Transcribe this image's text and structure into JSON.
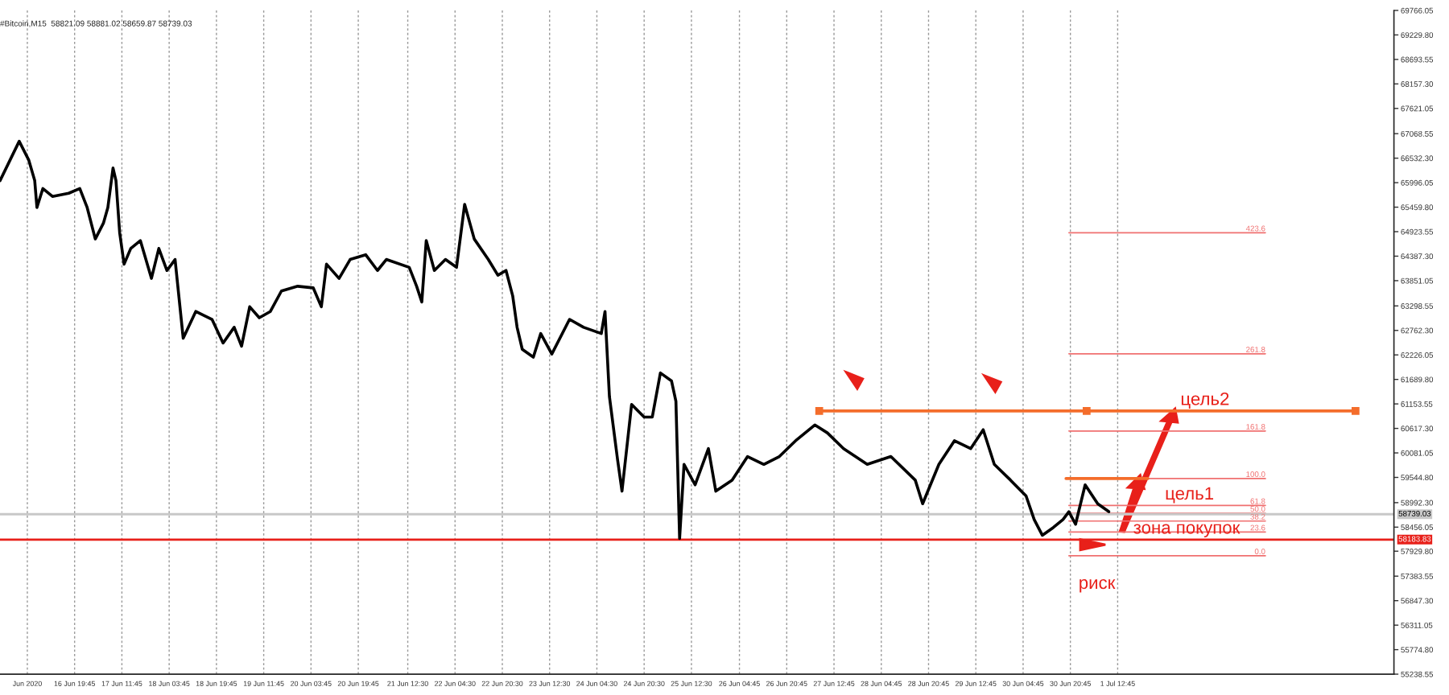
{
  "chart_data": {
    "type": "line",
    "title": "#Bitcoin,M15  58821.09 58881.02 58659.87 58739.03",
    "xlim": [
      "2020-06-15T18:30",
      "2020-07-05T10:15"
    ],
    "ylim": [
      55238.55,
      69766.05
    ],
    "xticks": [
      {
        "value": "2020-06-16T03:45",
        "label": "Jun 2020"
      },
      {
        "value": "2020-06-16T19:45",
        "label": "16 Jun 19:45"
      },
      {
        "value": "2020-06-17T11:45",
        "label": "17 Jun 11:45"
      },
      {
        "value": "2020-06-18T03:45",
        "label": "18 Jun 03:45"
      },
      {
        "value": "2020-06-18T19:45",
        "label": "18 Jun 19:45"
      },
      {
        "value": "2020-06-19T11:45",
        "label": "19 Jun 11:45"
      },
      {
        "value": "2020-06-20T03:45",
        "label": "20 Jun 03:45"
      },
      {
        "value": "2020-06-20T19:45",
        "label": "20 Jun 19:45"
      },
      {
        "value": "2020-06-21T12:30",
        "label": "21 Jun 12:30"
      },
      {
        "value": "2020-06-22T04:30",
        "label": "22 Jun 04:30"
      },
      {
        "value": "2020-06-22T20:30",
        "label": "22 Jun 20:30"
      },
      {
        "value": "2020-06-23T12:30",
        "label": "23 Jun 12:30"
      },
      {
        "value": "2020-06-24T04:30",
        "label": "24 Jun 04:30"
      },
      {
        "value": "2020-06-24T20:30",
        "label": "24 Jun 20:30"
      },
      {
        "value": "2020-06-25T12:30",
        "label": "25 Jun 12:30"
      },
      {
        "value": "2020-06-26T04:45",
        "label": "26 Jun 04:45"
      },
      {
        "value": "2020-06-26T20:45",
        "label": "26 Jun 20:45"
      },
      {
        "value": "2020-06-27T12:45",
        "label": "27 Jun 12:45"
      },
      {
        "value": "2020-06-28T04:45",
        "label": "28 Jun 04:45"
      },
      {
        "value": "2020-06-28T20:45",
        "label": "28 Jun 20:45"
      },
      {
        "value": "2020-06-29T12:45",
        "label": "29 Jun 12:45"
      },
      {
        "value": "2020-06-30T04:45",
        "label": "30 Jun 04:45"
      },
      {
        "value": "2020-06-30T20:45",
        "label": "30 Jun 20:45"
      },
      {
        "value": "2020-07-01T12:45",
        "label": "1 Jul 12:45"
      }
    ],
    "yticks": [
      {
        "value": 69766.05,
        "label": "69766.05"
      },
      {
        "value": 69229.8,
        "label": "69229.80"
      },
      {
        "value": 68693.55,
        "label": "68693.55"
      },
      {
        "value": 68157.3,
        "label": "68157.30"
      },
      {
        "value": 67621.05,
        "label": "67621.05"
      },
      {
        "value": 67068.55,
        "label": "67068.55"
      },
      {
        "value": 66532.3,
        "label": "66532.30"
      },
      {
        "value": 65996.05,
        "label": "65996.05"
      },
      {
        "value": 65459.8,
        "label": "65459.80"
      },
      {
        "value": 64923.55,
        "label": "64923.55"
      },
      {
        "value": 64387.3,
        "label": "64387.30"
      },
      {
        "value": 63851.05,
        "label": "63851.05"
      },
      {
        "value": 63298.55,
        "label": "63298.55"
      },
      {
        "value": 62762.3,
        "label": "62762.30"
      },
      {
        "value": 62226.05,
        "label": "62226.05"
      },
      {
        "value": 61689.8,
        "label": "61689.80"
      },
      {
        "value": 61153.55,
        "label": "61153.55"
      },
      {
        "value": 60617.3,
        "label": "60617.30"
      },
      {
        "value": 60081.05,
        "label": "60081.05"
      },
      {
        "value": 59544.8,
        "label": "59544.80"
      },
      {
        "value": 58992.3,
        "label": "58992.30"
      },
      {
        "value": 58456.05,
        "label": "58456.05"
      },
      {
        "value": 57929.8,
        "label": "57929.80"
      },
      {
        "value": 57383.55,
        "label": "57383.55"
      },
      {
        "value": 56847.3,
        "label": "56847.30"
      },
      {
        "value": 56311.05,
        "label": "56311.05"
      },
      {
        "value": 55774.8,
        "label": "55774.80"
      },
      {
        "value": 55238.55,
        "label": "55238.55"
      }
    ],
    "grid": "x",
    "series": [
      {
        "color": "#000000",
        "x": [
          "2020-06-15T18:30",
          "2020-06-16T01:00",
          "2020-06-16T04:15",
          "2020-06-16T06:15",
          "2020-06-16T07:00",
          "2020-06-16T09:00",
          "2020-06-16T12:15",
          "2020-06-16T17:45",
          "2020-06-16T21:30",
          "2020-06-17T00:00",
          "2020-06-17T02:45",
          "2020-06-17T05:30",
          "2020-06-17T07:00",
          "2020-06-17T08:45",
          "2020-06-17T09:45",
          "2020-06-17T11:00",
          "2020-06-17T12:30",
          "2020-06-17T14:45",
          "2020-06-17T18:00",
          "2020-06-17T21:45",
          "2020-06-18T00:15",
          "2020-06-18T03:00",
          "2020-06-18T05:45",
          "2020-06-18T08:30",
          "2020-06-18T12:45",
          "2020-06-18T18:15",
          "2020-06-18T22:00",
          "2020-06-19T01:45",
          "2020-06-19T04:15",
          "2020-06-19T07:00",
          "2020-06-19T10:15",
          "2020-06-19T14:00",
          "2020-06-19T17:45",
          "2020-06-19T23:15",
          "2020-06-20T04:30",
          "2020-06-20T07:15",
          "2020-06-20T09:00",
          "2020-06-20T13:15",
          "2020-06-20T17:00",
          "2020-06-20T22:15",
          "2020-06-21T02:15",
          "2020-06-21T05:15",
          "2020-06-21T13:00",
          "2020-06-21T15:30",
          "2020-06-21T17:15",
          "2020-06-21T18:45",
          "2020-06-21T21:30",
          "2020-06-22T01:15",
          "2020-06-22T05:00",
          "2020-06-22T07:45",
          "2020-06-22T11:00",
          "2020-06-22T15:45",
          "2020-06-22T19:00",
          "2020-06-22T21:45",
          "2020-06-23T00:00",
          "2020-06-23T01:30",
          "2020-06-23T03:15",
          "2020-06-23T07:00",
          "2020-06-23T09:30",
          "2020-06-23T13:15",
          "2020-06-23T19:15",
          "2020-06-24T00:00",
          "2020-06-24T06:00",
          "2020-06-24T07:15",
          "2020-06-24T08:45",
          "2020-06-24T11:30",
          "2020-06-24T13:00",
          "2020-06-24T16:15",
          "2020-06-24T20:30",
          "2020-06-24T23:15",
          "2020-06-25T02:00",
          "2020-06-25T05:45",
          "2020-06-25T07:15",
          "2020-06-25T08:30",
          "2020-06-25T10:00",
          "2020-06-25T13:45",
          "2020-06-25T18:15",
          "2020-06-25T20:45",
          "2020-06-26T02:15",
          "2020-06-26T07:30",
          "2020-06-26T13:00",
          "2020-06-26T18:15",
          "2020-06-26T23:45",
          "2020-06-27T06:15",
          "2020-06-27T10:30",
          "2020-06-27T16:00",
          "2020-06-28T00:00",
          "2020-06-28T08:00",
          "2020-06-28T16:15",
          "2020-06-28T18:45",
          "2020-06-29T00:15",
          "2020-06-29T05:30",
          "2020-06-29T11:00",
          "2020-06-29T15:15",
          "2020-06-29T19:00",
          "2020-06-30T00:30",
          "2020-06-30T05:45",
          "2020-06-30T08:30",
          "2020-06-30T11:15",
          "2020-06-30T15:00",
          "2020-06-30T18:15",
          "2020-06-30T20:15",
          "2020-06-30T22:30",
          "2020-07-01T01:45",
          "2020-07-01T06:00",
          "2020-07-01T09:45"
        ],
        "values": [
          66040,
          66902,
          66488,
          66040,
          65453,
          65867,
          65695,
          65764,
          65867,
          65453,
          64763,
          65110,
          65453,
          66316,
          66040,
          64902,
          64212,
          64556,
          64729,
          63901,
          64556,
          64074,
          64315,
          62590,
          63177,
          63004,
          62486,
          62831,
          62418,
          63280,
          63039,
          63177,
          63625,
          63729,
          63694,
          63280,
          64212,
          63901,
          64315,
          64419,
          64074,
          64315,
          64143,
          63729,
          63384,
          64729,
          64074,
          64315,
          64143,
          65522,
          64763,
          64315,
          63970,
          64074,
          63522,
          62831,
          62349,
          62176,
          62694,
          62245,
          63004,
          62831,
          62694,
          63177,
          61314,
          59934,
          59244,
          61141,
          60865,
          60865,
          61831,
          61659,
          61210,
          58209,
          59830,
          59382,
          60175,
          59244,
          59485,
          60002,
          59830,
          60002,
          60347,
          60692,
          60520,
          60175,
          59830,
          60002,
          59485,
          58968,
          59830,
          60347,
          60175,
          60589,
          59830,
          59485,
          59140,
          58623,
          58278,
          58450,
          58623,
          58795,
          58519,
          59382,
          58968,
          58795
        ]
      },
      {
        "color": "#f46d2b",
        "marker": "square",
        "x": [
          "2020-06-27T07:45",
          "2020-07-01T02:15",
          "2020-07-04T21:15"
        ],
        "values": [
          61000,
          61000,
          61000
        ]
      },
      {
        "color": "#f46d2b",
        "x": [
          "2020-06-30T19:15",
          "2020-07-01T23:00"
        ],
        "values": [
          59520,
          59520
        ]
      },
      {
        "name": "423.6",
        "color": "#f07070",
        "x": [
          "2020-06-30T20:15",
          "2020-07-03T14:45"
        ],
        "values": [
          64900,
          64900
        ]
      },
      {
        "name": "261.8",
        "color": "#f07070",
        "x": [
          "2020-06-30T20:15",
          "2020-07-03T14:45"
        ],
        "values": [
          62250,
          62250
        ]
      },
      {
        "name": "161.8",
        "color": "#f07070",
        "x": [
          "2020-06-30T20:15",
          "2020-07-03T14:45"
        ],
        "values": [
          60560,
          60560
        ]
      },
      {
        "name": "100.0",
        "color": "#f07070",
        "x": [
          "2020-06-30T20:15",
          "2020-07-03T14:45"
        ],
        "values": [
          59520,
          59520
        ]
      },
      {
        "name": "61.8",
        "color": "#f07070",
        "x": [
          "2020-06-30T20:15",
          "2020-07-03T14:45"
        ],
        "values": [
          58930,
          58930
        ]
      },
      {
        "name": "50.0",
        "color": "#f07070",
        "x": [
          "2020-06-30T20:15",
          "2020-07-03T14:45"
        ],
        "values": [
          58760,
          58760
        ]
      },
      {
        "name": "38.2",
        "color": "#f07070",
        "x": [
          "2020-06-30T20:15",
          "2020-07-03T14:45"
        ],
        "values": [
          58590,
          58590
        ]
      },
      {
        "name": "23.6",
        "color": "#f07070",
        "x": [
          "2020-06-30T20:15",
          "2020-07-03T14:45"
        ],
        "values": [
          58350,
          58350
        ]
      },
      {
        "name": "0.0",
        "color": "#f07070",
        "x": [
          "2020-06-30T20:15",
          "2020-07-03T14:45"
        ],
        "values": [
          57830,
          57830
        ]
      }
    ],
    "ref_lines": [
      {
        "axis": "y",
        "value": 58739.03,
        "label": "58739.03",
        "color": "#c8c8c8"
      },
      {
        "axis": "y",
        "value": 58183.83,
        "label": "58183.83",
        "color": "#e8201a"
      }
    ],
    "annotations": [
      {
        "text": "цель2",
        "x": "2020-07-02T10:00",
        "y": 61000
      },
      {
        "text": "цель1",
        "x": "2020-07-02T04:45",
        "y": 58930
      },
      {
        "text": "зона покупок",
        "x": "2020-07-01T18:00",
        "y": 58183.83
      },
      {
        "text": "риск",
        "x": "2020-06-30T23:30",
        "y": 57830
      }
    ]
  }
}
